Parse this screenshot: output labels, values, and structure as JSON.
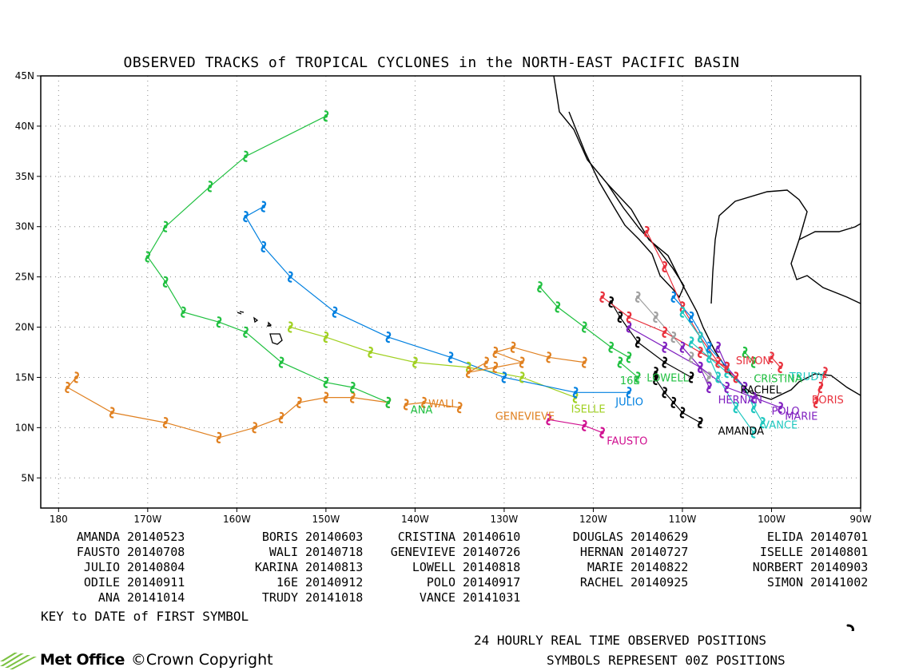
{
  "title": "OBSERVED TRACKS of TROPICAL CYCLONES in the NORTH-EAST PACIFIC BASIN",
  "map": {
    "lon_range": [
      -182,
      -90
    ],
    "lat_range": [
      2,
      45
    ],
    "lon_ticks": [
      {
        "value": 180,
        "label": "180"
      },
      {
        "value": -170,
        "label": "170W"
      },
      {
        "value": -160,
        "label": "160W"
      },
      {
        "value": -150,
        "label": "150W"
      },
      {
        "value": -140,
        "label": "140W"
      },
      {
        "value": -130,
        "label": "130W"
      },
      {
        "value": -120,
        "label": "120W"
      },
      {
        "value": -110,
        "label": "110W"
      },
      {
        "value": -100,
        "label": "100W"
      },
      {
        "value": -90,
        "label": "90W"
      }
    ],
    "lat_ticks": [
      {
        "value": 45,
        "label": "45N"
      },
      {
        "value": 40,
        "label": "40N"
      },
      {
        "value": 35,
        "label": "35N"
      },
      {
        "value": 30,
        "label": "30N"
      },
      {
        "value": 25,
        "label": "25N"
      },
      {
        "value": 20,
        "label": "20N"
      },
      {
        "value": 15,
        "label": "15N"
      },
      {
        "value": 10,
        "label": "10N"
      },
      {
        "value": 5,
        "label": "5N"
      }
    ],
    "grid": "dotted",
    "symbol_icon": "tropical-cyclone-icon"
  },
  "cyclones": [
    {
      "name": "AMANDA",
      "date": "20140523",
      "color": "#000000",
      "track": [
        [
          -108,
          10.5
        ],
        [
          -110,
          11.5
        ],
        [
          -111,
          12.5
        ],
        [
          -112,
          13.5
        ],
        [
          -113,
          14.8
        ],
        [
          -113,
          15.5
        ]
      ]
    },
    {
      "name": "BORIS",
      "date": "20140603",
      "color": "#e8303c",
      "track": [
        [
          -95,
          12.5
        ],
        [
          -94.5,
          14
        ],
        [
          -94,
          15.5
        ]
      ]
    },
    {
      "name": "CRISTINA",
      "date": "20140610",
      "color": "#20c8c0",
      "track": [
        [
          -101,
          10.5
        ],
        [
          -102,
          12
        ],
        [
          -103,
          14
        ],
        [
          -105,
          15.5
        ],
        [
          -107,
          17
        ],
        [
          -109,
          18.5
        ]
      ]
    },
    {
      "name": "DOUGLAS",
      "date": "20140629",
      "color": "#a0a0a0",
      "track": [
        [
          -107,
          15
        ],
        [
          -109,
          17
        ],
        [
          -111,
          19
        ],
        [
          -113,
          21
        ],
        [
          -115,
          23
        ]
      ]
    },
    {
      "name": "ELIDA",
      "date": "20140701",
      "color": "#20c040",
      "track": [
        [
          -102,
          16.5
        ],
        [
          -103,
          17.5
        ]
      ]
    },
    {
      "name": "FAUSTO",
      "date": "20140708",
      "color": "#d01090",
      "track": [
        [
          -119,
          9.5
        ],
        [
          -121,
          10.2
        ],
        [
          -125,
          10.8
        ]
      ]
    },
    {
      "name": "WALI",
      "date": "20140718",
      "color": "#e08020",
      "track": [
        [
          -135,
          12
        ],
        [
          -139,
          12.5
        ],
        [
          -141,
          12.3
        ]
      ]
    },
    {
      "name": "GENEVIEVE",
      "date": "20140726",
      "color": "#e08020",
      "track": [
        [
          -178,
          15
        ],
        [
          -179,
          14
        ],
        [
          -174,
          11.5
        ],
        [
          -168,
          10.5
        ],
        [
          -162,
          9
        ],
        [
          -158,
          10
        ],
        [
          -155,
          11
        ],
        [
          -153,
          12.5
        ],
        [
          -150,
          13
        ],
        [
          -147,
          13
        ],
        [
          -143,
          12.5
        ]
      ]
    },
    {
      "name": "HERNAN",
      "date": "20140727",
      "color": "#8020c0",
      "track": [
        [
          -107,
          14
        ],
        [
          -108,
          16
        ],
        [
          -110,
          18
        ]
      ]
    },
    {
      "name": "ISELLE",
      "date": "20140801",
      "color": "#a0d020",
      "track": [
        [
          -122,
          13
        ],
        [
          -128,
          15
        ],
        [
          -134,
          16
        ],
        [
          -140,
          16.5
        ],
        [
          -145,
          17.5
        ],
        [
          -150,
          19
        ],
        [
          -154,
          20
        ]
      ]
    },
    {
      "name": "JULIO",
      "date": "20140804",
      "color": "#0080e0",
      "track": [
        [
          -116,
          13.5
        ],
        [
          -122,
          13.5
        ],
        [
          -130,
          15
        ],
        [
          -136,
          17
        ],
        [
          -143,
          19
        ],
        [
          -149,
          21.5
        ],
        [
          -154,
          25
        ],
        [
          -157,
          28
        ],
        [
          -159,
          31
        ],
        [
          -157,
          32
        ]
      ]
    },
    {
      "name": "KARINA",
      "date": "20140813",
      "color": "#e08020",
      "track": [
        [
          -121,
          16.5
        ],
        [
          -125,
          17
        ],
        [
          -129,
          18
        ],
        [
          -131,
          17.5
        ],
        [
          -128,
          16.5
        ],
        [
          -131,
          16
        ],
        [
          -134,
          15.5
        ],
        [
          -132,
          16.5
        ]
      ]
    },
    {
      "name": "LOWELL",
      "date": "20140818",
      "color": "#20c040",
      "track": [
        [
          -116,
          17
        ],
        [
          -118,
          18
        ],
        [
          -121,
          20
        ],
        [
          -124,
          22
        ],
        [
          -126,
          24
        ]
      ]
    },
    {
      "name": "16E",
      "date": "20140912",
      "color": "#20c040",
      "track": [
        [
          -115,
          15
        ],
        [
          -117,
          16.5
        ]
      ]
    },
    {
      "name": "MARIE",
      "date": "20140822",
      "color": "#8020c0",
      "track": [
        [
          -99,
          12
        ],
        [
          -102,
          13
        ],
        [
          -105,
          14
        ],
        [
          -108,
          16
        ],
        [
          -112,
          18
        ],
        [
          -116,
          20
        ]
      ]
    },
    {
      "name": "NORBERT",
      "date": "20140903",
      "color": "#0080e0",
      "track": [
        [
          -105,
          16
        ],
        [
          -107,
          18
        ],
        [
          -109,
          21
        ],
        [
          -111,
          23
        ]
      ]
    },
    {
      "name": "ODILE",
      "date": "20140911",
      "color": "#e8303c",
      "track": [
        [
          -104,
          15
        ],
        [
          -106,
          16.5
        ],
        [
          -108,
          19
        ],
        [
          -110,
          22
        ],
        [
          -112,
          26
        ],
        [
          -114,
          29.5
        ]
      ]
    },
    {
      "name": "ANA",
      "date": "20141014",
      "color": "#20c040",
      "track": [
        [
          -143,
          12.5
        ],
        [
          -147,
          14
        ],
        [
          -150,
          14.5
        ],
        [
          -155,
          16.5
        ],
        [
          -159,
          19.5
        ],
        [
          -162,
          20.5
        ],
        [
          -166,
          21.5
        ],
        [
          -168,
          24.5
        ],
        [
          -170,
          27
        ],
        [
          -168,
          30
        ],
        [
          -163,
          34
        ],
        [
          -159,
          37
        ],
        [
          -150,
          41
        ]
      ]
    },
    {
      "name": "TRUDY",
      "date": "20141018",
      "color": "#e8303c",
      "track": [
        [
          -99,
          16
        ],
        [
          -100,
          17
        ]
      ]
    },
    {
      "name": "POLO",
      "date": "20140917",
      "color": "#8020c0",
      "track": [
        [
          -103,
          14
        ],
        [
          -105,
          16
        ],
        [
          -106,
          18
        ]
      ]
    },
    {
      "name": "RACHEL",
      "date": "20140925",
      "color": "#000000",
      "track": [
        [
          -109,
          15
        ],
        [
          -112,
          16.5
        ],
        [
          -115,
          18.5
        ],
        [
          -117,
          21
        ],
        [
          -118,
          22.5
        ]
      ]
    },
    {
      "name": "SIMON",
      "date": "20141002",
      "color": "#e8303c",
      "track": [
        [
          -105,
          16
        ],
        [
          -108,
          17.5
        ],
        [
          -112,
          19.5
        ],
        [
          -116,
          21
        ],
        [
          -119,
          23
        ]
      ]
    },
    {
      "name": "VANCE",
      "date": "20141031",
      "color": "#20c8c0",
      "track": [
        [
          -102,
          9.5
        ],
        [
          -104,
          12
        ],
        [
          -106,
          15
        ],
        [
          -108,
          19
        ],
        [
          -110,
          21.5
        ]
      ]
    }
  ],
  "map_labels": [
    {
      "text": "AMANDA",
      "lon": -106,
      "lat": 9.3,
      "color": "#000000"
    },
    {
      "text": "FAUSTO",
      "lon": -118.5,
      "lat": 8.3,
      "color": "#d01090"
    },
    {
      "text": "GENEVIEVE",
      "lon": -131,
      "lat": 10.8,
      "color": "#e08020"
    },
    {
      "text": "ISELLE",
      "lon": -122.5,
      "lat": 11.5,
      "color": "#a0d020"
    },
    {
      "text": "JULIO",
      "lon": -117.5,
      "lat": 12.2,
      "color": "#0080e0"
    },
    {
      "text": "ANA",
      "lon": -140.5,
      "lat": 11.4,
      "color": "#20c040"
    },
    {
      "text": "WALI",
      "lon": -138.5,
      "lat": 12.0,
      "color": "#e08020"
    },
    {
      "text": "16E",
      "lon": -117,
      "lat": 14.3,
      "color": "#20c040"
    },
    {
      "text": "LOWELL",
      "lon": -114,
      "lat": 14.6,
      "color": "#20c040"
    },
    {
      "text": "VANCE",
      "lon": -101,
      "lat": 9.9,
      "color": "#20c8c0"
    },
    {
      "text": "MARIE",
      "lon": -98.5,
      "lat": 10.8,
      "color": "#8020c0"
    },
    {
      "text": "POLO",
      "lon": -100,
      "lat": 11.3,
      "color": "#8020c0"
    },
    {
      "text": "HERNAN",
      "lon": -106,
      "lat": 12.4,
      "color": "#8020c0"
    },
    {
      "text": "RACHEL",
      "lon": -103.5,
      "lat": 13.4,
      "color": "#000000"
    },
    {
      "text": "BORIS",
      "lon": -95.5,
      "lat": 12.4,
      "color": "#e8303c"
    },
    {
      "text": "TRUDY",
      "lon": -98,
      "lat": 14.7,
      "color": "#20c8c0"
    },
    {
      "text": "CRISTINA",
      "lon": -102,
      "lat": 14.5,
      "color": "#20c040"
    },
    {
      "text": "SIMON",
      "lon": -104,
      "lat": 16.3,
      "color": "#e8303c"
    }
  ],
  "key": {
    "caption": "KEY to DATE of FIRST SYMBOL",
    "columns": [
      [
        [
          "AMANDA",
          "20140523"
        ],
        [
          "FAUSTO",
          "20140708"
        ],
        [
          "JULIO",
          "20140804"
        ],
        [
          "ODILE",
          "20140911"
        ],
        [
          "ANA",
          "20141014"
        ]
      ],
      [
        [
          "BORIS",
          "20140603"
        ],
        [
          "WALI",
          "20140718"
        ],
        [
          "KARINA",
          "20140813"
        ],
        [
          "16E",
          "20140912"
        ],
        [
          "TRUDY",
          "20141018"
        ]
      ],
      [
        [
          "CRISTINA",
          "20140610"
        ],
        [
          "GENEVIEVE",
          "20140726"
        ],
        [
          "LOWELL",
          "20140818"
        ],
        [
          "POLO",
          "20140917"
        ],
        [
          "VANCE",
          "20141031"
        ]
      ],
      [
        [
          "DOUGLAS",
          "20140629"
        ],
        [
          "HERNAN",
          "20140727"
        ],
        [
          "MARIE",
          "20140822"
        ],
        [
          "RACHEL",
          "20140925"
        ]
      ],
      [
        [
          "ELIDA",
          "20140701"
        ],
        [
          "ISELLE",
          "20140801"
        ],
        [
          "NORBERT",
          "20140903"
        ],
        [
          "SIMON",
          "20141002"
        ]
      ]
    ]
  },
  "footer": {
    "positions_text": "24 HOURLY REAL TIME OBSERVED POSITIONS",
    "symbols_text": "SYMBOLS REPRESENT 00Z POSITIONS",
    "brand": "Met Office",
    "copyright": "©Crown Copyright"
  }
}
